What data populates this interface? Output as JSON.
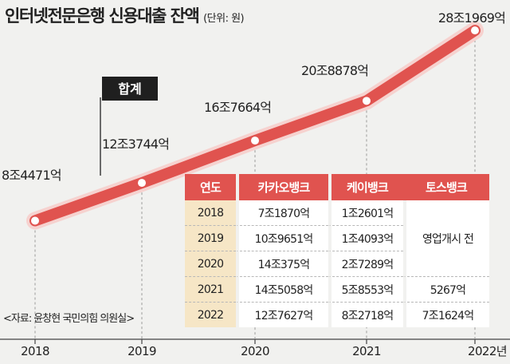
{
  "header": {
    "title": "인터넷전문은행 신용대출 잔액",
    "unit": "(단위: 원)"
  },
  "source": "<자료: 윤창현 국민의힘 의원실>",
  "callout": "합계",
  "colors": {
    "line": "#e0534f",
    "line_halo": "#f6d2cf",
    "table_header": "#e0534f",
    "year_cell": "#f6e6c6",
    "background": "#f1f1ef"
  },
  "chart_data": {
    "type": "line",
    "title": "인터넷전문은행 신용대출 잔액",
    "unit": "(단위: 원)",
    "x": [
      "2018",
      "2019",
      "2020",
      "2021",
      "2022년"
    ],
    "series": [
      {
        "name": "합계",
        "values": [
          84471,
          123744,
          167664,
          208878,
          281969
        ]
      }
    ],
    "data_labels": [
      "8조4471억",
      "12조3744억",
      "16조7664억",
      "20조8878억",
      "28조1969억"
    ],
    "grid": false
  },
  "table": {
    "headers": [
      "연도",
      "카카오뱅크",
      "케이뱅크",
      "토스뱅크"
    ],
    "rows": [
      {
        "year": "2018",
        "kakao": "7조1870억",
        "kbank": "1조2601억"
      },
      {
        "year": "2019",
        "kakao": "10조9651억",
        "kbank": "1조4093억"
      },
      {
        "year": "2020",
        "kakao": "14조375억",
        "kbank": "2조7289억"
      },
      {
        "year": "2021",
        "kakao": "14조5058억",
        "kbank": "5조8553억",
        "toss": "5267억"
      },
      {
        "year": "2022",
        "kakao": "12조7627억",
        "kbank": "8조2718억",
        "toss": "7조1624억"
      }
    ],
    "toss_merged": "영업개시 전"
  }
}
